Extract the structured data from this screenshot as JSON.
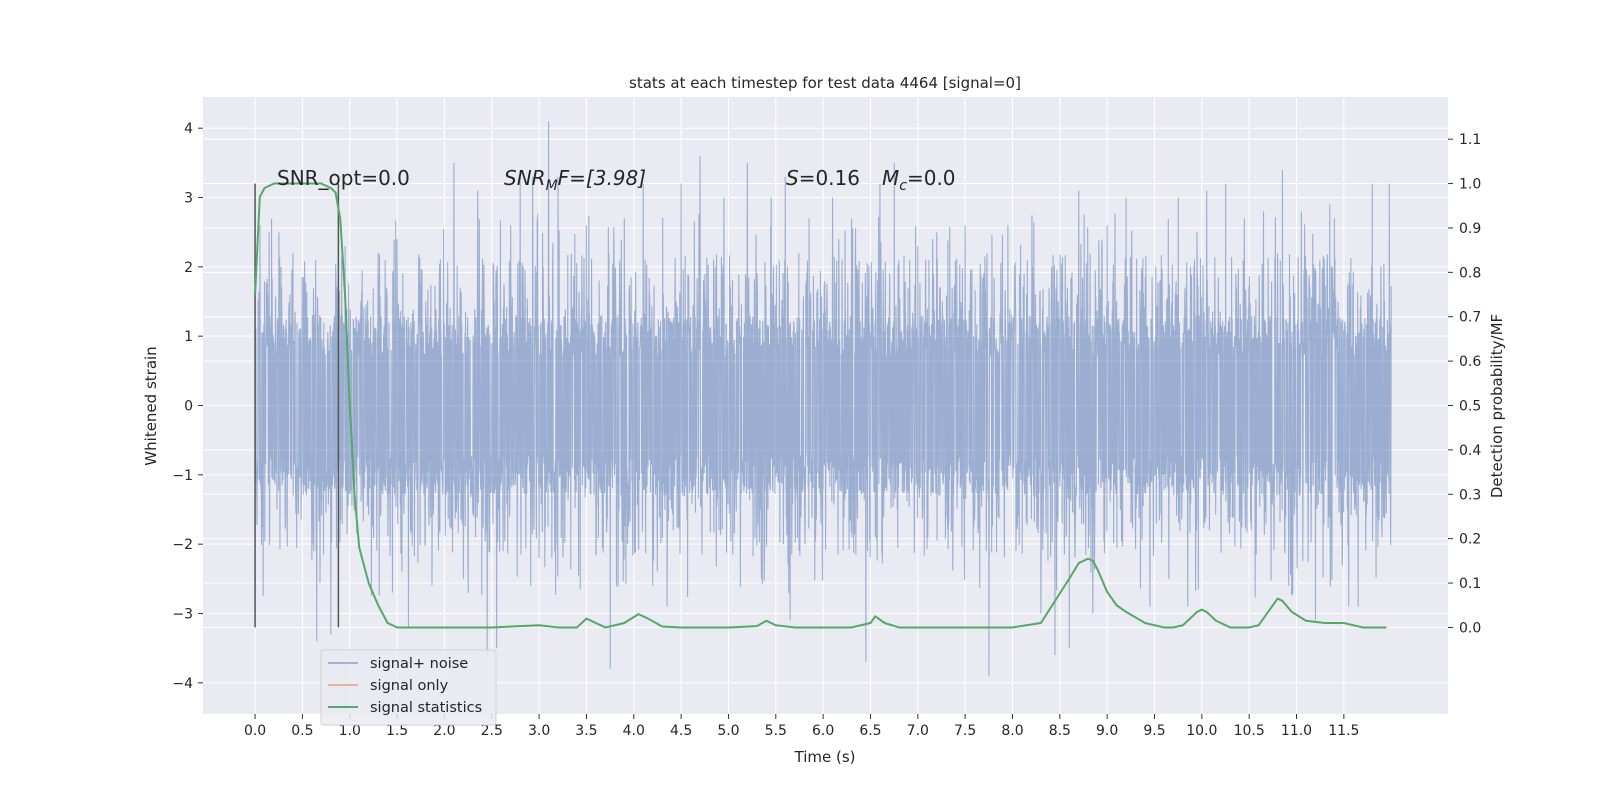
{
  "chart_data": {
    "type": "line",
    "title": "stats at each timestep for test data 4464 [signal=0]",
    "xlabel": "Time (s)",
    "ylabel": "Whitened strain",
    "y2label": "Detection probability/MF",
    "xlim": [
      -0.55,
      12.6
    ],
    "ylim": [
      -4.45,
      4.45
    ],
    "y2lim": [
      -0.195,
      1.195
    ],
    "x_ticks": [
      "0.0",
      "0.5",
      "1.0",
      "1.5",
      "2.0",
      "2.5",
      "3.0",
      "3.5",
      "4.0",
      "4.5",
      "5.0",
      "5.5",
      "6.0",
      "6.5",
      "7.0",
      "7.5",
      "8.0",
      "8.5",
      "9.0",
      "9.5",
      "10.0",
      "10.5",
      "11.0",
      "11.5"
    ],
    "y_ticks": [
      "4",
      "3",
      "2",
      "1",
      "0",
      "−1",
      "−2",
      "−3",
      "−4"
    ],
    "y2_ticks": [
      "1.1",
      "1.0",
      "0.9",
      "0.8",
      "0.7",
      "0.6",
      "0.5",
      "0.4",
      "0.3",
      "0.2",
      "0.1",
      "0.0"
    ],
    "grid": true,
    "legend_position": "lower-left",
    "colors": {
      "background": "#eaeaf2",
      "grid": "#ffffff",
      "signal_noise": "#4c72b0",
      "signal_only": "#dd8452",
      "statistics": "#55a868",
      "vline": "#555555"
    },
    "annotations": {
      "snr_opt": "SNR_opt=0.0",
      "snr_mf_symbol": "SNR",
      "snr_mf_sub": "M",
      "snr_mf_rest": "F=[3.98]",
      "s_symbol": "S",
      "s_value": "=0.16",
      "mc_symbol": "M",
      "mc_sub": "c",
      "mc_value": "=0.0"
    },
    "vertical_lines": [
      0.0,
      0.88
    ],
    "series": [
      {
        "name": "signal+ noise",
        "axis": "left",
        "description": "whitened noise strain, dense oscillation approx within ±2.5 with peaks up to ±4",
        "envelope_core": 1.3,
        "peaks": [
          [
            0.05,
            2.6
          ],
          [
            0.15,
            2.5
          ],
          [
            0.25,
            2.5
          ],
          [
            0.4,
            2.2
          ],
          [
            0.65,
            -3.4
          ],
          [
            0.8,
            -3.3
          ],
          [
            0.95,
            2.3
          ],
          [
            1.3,
            2.2
          ],
          [
            1.45,
            -2.7
          ],
          [
            1.5,
            2.4
          ],
          [
            1.62,
            -3.2
          ],
          [
            2.1,
            3.5
          ],
          [
            2.2,
            -2.5
          ],
          [
            2.35,
            3.1
          ],
          [
            2.45,
            -3.6
          ],
          [
            2.55,
            -3.5
          ],
          [
            2.7,
            2.6
          ],
          [
            2.8,
            3.4
          ],
          [
            2.93,
            3.3
          ],
          [
            3.0,
            -2.2
          ],
          [
            3.1,
            4.1
          ],
          [
            3.2,
            3.3
          ],
          [
            3.5,
            2.6
          ],
          [
            3.75,
            -3.8
          ],
          [
            3.9,
            2.7
          ],
          [
            4.1,
            3.2
          ],
          [
            4.2,
            -2.6
          ],
          [
            4.35,
            -2.9
          ],
          [
            4.5,
            3.2
          ],
          [
            4.7,
            3.6
          ],
          [
            4.95,
            3.0
          ],
          [
            5.2,
            3.5
          ],
          [
            5.35,
            -2.5
          ],
          [
            5.45,
            3.0
          ],
          [
            5.6,
            3.3
          ],
          [
            5.65,
            -3.1
          ],
          [
            5.85,
            2.7
          ],
          [
            6.1,
            3.0
          ],
          [
            6.3,
            2.7
          ],
          [
            6.45,
            -3.7
          ],
          [
            6.6,
            3.2
          ],
          [
            6.75,
            3.5
          ],
          [
            7.0,
            2.3
          ],
          [
            7.2,
            2.5
          ],
          [
            7.5,
            2.6
          ],
          [
            7.75,
            -3.9
          ],
          [
            7.95,
            2.6
          ],
          [
            8.3,
            -3.0
          ],
          [
            8.45,
            -3.6
          ],
          [
            8.6,
            -3.5
          ],
          [
            8.7,
            3.1
          ],
          [
            8.85,
            -3.0
          ],
          [
            9.0,
            2.6
          ],
          [
            9.2,
            3.0
          ],
          [
            9.45,
            -2.9
          ],
          [
            9.65,
            -2.5
          ],
          [
            9.75,
            3.0
          ],
          [
            9.85,
            -2.9
          ],
          [
            10.05,
            3.1
          ],
          [
            10.25,
            3.2
          ],
          [
            10.45,
            2.7
          ],
          [
            10.65,
            2.8
          ],
          [
            10.85,
            3.4
          ],
          [
            11.05,
            2.8
          ],
          [
            11.2,
            -3.1
          ],
          [
            11.35,
            2.9
          ],
          [
            11.55,
            -2.9
          ],
          [
            11.65,
            -2.9
          ],
          [
            11.8,
            3.2
          ],
          [
            11.98,
            3.2
          ]
        ]
      },
      {
        "name": "signal only",
        "axis": "left",
        "x": [],
        "y": []
      },
      {
        "name": "signal statistics",
        "axis": "right",
        "x": [
          0.0,
          0.05,
          0.1,
          0.2,
          0.3,
          0.4,
          0.5,
          0.6,
          0.7,
          0.8,
          0.85,
          0.9,
          0.95,
          1.0,
          1.05,
          1.1,
          1.2,
          1.3,
          1.4,
          1.5,
          1.7,
          2.0,
          2.5,
          2.8,
          3.0,
          3.2,
          3.4,
          3.5,
          3.6,
          3.7,
          3.9,
          4.05,
          4.15,
          4.3,
          4.5,
          5.0,
          5.3,
          5.4,
          5.5,
          5.7,
          6.0,
          6.3,
          6.5,
          6.55,
          6.65,
          6.8,
          7.0,
          7.5,
          8.0,
          8.3,
          8.45,
          8.6,
          8.7,
          8.8,
          8.85,
          8.9,
          9.0,
          9.1,
          9.2,
          9.4,
          9.6,
          9.7,
          9.8,
          9.95,
          10.0,
          10.05,
          10.15,
          10.3,
          10.5,
          10.6,
          10.7,
          10.8,
          10.85,
          10.95,
          11.1,
          11.3,
          11.5,
          11.7,
          11.8,
          11.9,
          11.95
        ],
        "y": [
          0.75,
          0.97,
          0.99,
          1.0,
          1.0,
          1.0,
          1.0,
          1.0,
          1.0,
          0.99,
          0.98,
          0.92,
          0.75,
          0.5,
          0.3,
          0.18,
          0.1,
          0.05,
          0.01,
          0.0,
          0.0,
          0.0,
          0.0,
          0.003,
          0.005,
          0.0,
          0.0,
          0.02,
          0.01,
          0.0,
          0.01,
          0.03,
          0.02,
          0.002,
          0.0,
          0.0,
          0.003,
          0.015,
          0.005,
          0.0,
          0.0,
          0.0,
          0.01,
          0.025,
          0.01,
          0.0,
          0.0,
          0.0,
          0.0,
          0.01,
          0.06,
          0.11,
          0.145,
          0.155,
          0.15,
          0.13,
          0.08,
          0.05,
          0.035,
          0.01,
          0.0,
          0.0,
          0.005,
          0.035,
          0.04,
          0.035,
          0.015,
          0.0,
          0.0,
          0.005,
          0.035,
          0.065,
          0.06,
          0.035,
          0.015,
          0.01,
          0.01,
          0.0,
          0.0,
          0.0,
          0.0
        ]
      }
    ]
  }
}
